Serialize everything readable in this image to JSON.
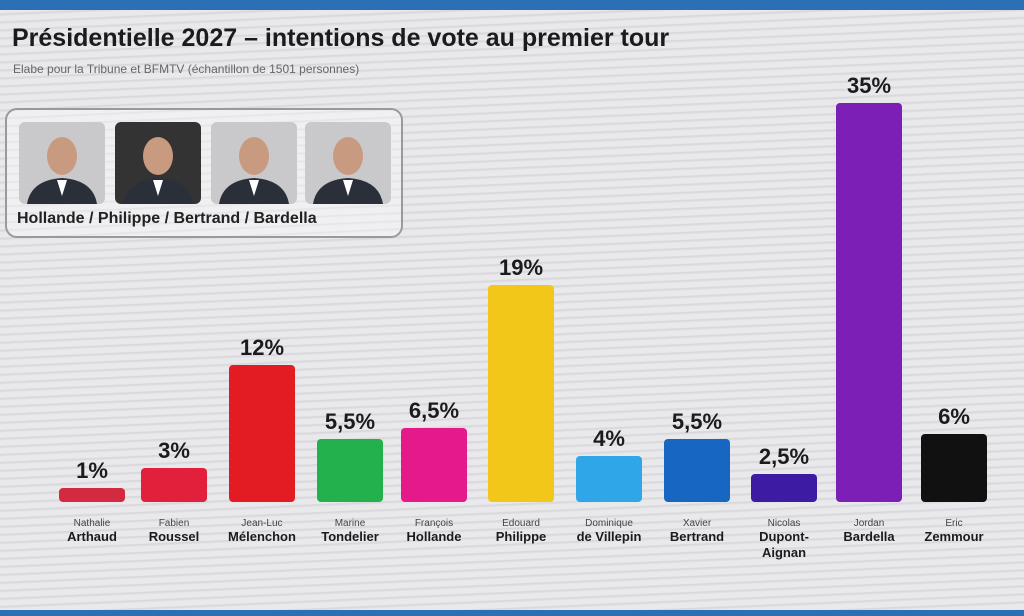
{
  "chart_data": {
    "type": "bar",
    "title": "Présidentielle 2027 – intentions de vote au premier tour",
    "subtitle": "Elabe pour la Tribune et  BFMTV (échantillon de 1501 personnes)",
    "xlabel": "",
    "ylabel": "",
    "ylim": [
      0,
      35
    ],
    "categories": [
      {
        "first": "Nathalie",
        "last": "Arthaud"
      },
      {
        "first": "Fabien",
        "last": "Roussel"
      },
      {
        "first": "Jean-Luc",
        "last": "Mélenchon"
      },
      {
        "first": "Marine",
        "last": "Tondelier"
      },
      {
        "first": "François",
        "last": "Hollande"
      },
      {
        "first": "Edouard",
        "last": "Philippe"
      },
      {
        "first": "Dominique",
        "last": "de Villepin"
      },
      {
        "first": "Xavier",
        "last": "Bertrand"
      },
      {
        "first": "Nicolas",
        "last": "Dupont-Aignan"
      },
      {
        "first": "Jordan",
        "last": "Bardella"
      },
      {
        "first": "Eric",
        "last": "Zemmour"
      }
    ],
    "values": [
      1,
      3,
      12,
      5.5,
      6.5,
      19,
      4,
      5.5,
      2.5,
      35,
      6
    ],
    "value_labels": [
      "1%",
      "3%",
      "12%",
      "5,5%",
      "6,5%",
      "19%",
      "4%",
      "5,5%",
      "2,5%",
      "35%",
      "6%"
    ],
    "colors": [
      "#d42a40",
      "#e2203c",
      "#e31b23",
      "#23b14d",
      "#e6198a",
      "#f3c61a",
      "#2ea6e8",
      "#1767c2",
      "#3d1ca3",
      "#7c1fb6",
      "#111111"
    ]
  },
  "panel": {
    "caption": "Hollande / Philippe / Bertrand / Bardella"
  }
}
